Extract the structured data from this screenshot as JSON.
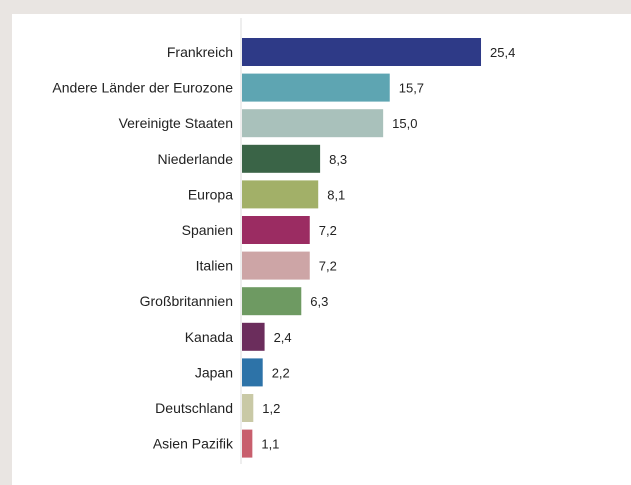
{
  "chart_data": {
    "type": "bar",
    "orientation": "horizontal",
    "categories": [
      "Frankreich",
      "Andere Länder der Eurozone",
      "Vereinigte Staaten",
      "Niederlande",
      "Europa",
      "Spanien",
      "Italien",
      "Großbritannien",
      "Kanada",
      "Japan",
      "Deutschland",
      "Asien Pazifik"
    ],
    "values": [
      25.4,
      15.7,
      15.0,
      8.3,
      8.1,
      7.2,
      7.2,
      6.3,
      2.4,
      2.2,
      1.2,
      1.1
    ],
    "value_labels": [
      "25,4",
      "15,7",
      "15,0",
      "8,3",
      "8,1",
      "7,2",
      "7,2",
      "6,3",
      "2,4",
      "2,2",
      "1,2",
      "1,1"
    ],
    "colors": [
      "#2e3a87",
      "#5ea5b2",
      "#a9c1bb",
      "#3a6447",
      "#a2b068",
      "#9b2c62",
      "#cda5a6",
      "#6e9a62",
      "#6b2d5c",
      "#2d73a8",
      "#c9c9a6",
      "#c85f6d"
    ],
    "title": "",
    "xlabel": "",
    "ylabel": "",
    "xlim": [
      0,
      30
    ],
    "grid": false,
    "legend": "none"
  }
}
